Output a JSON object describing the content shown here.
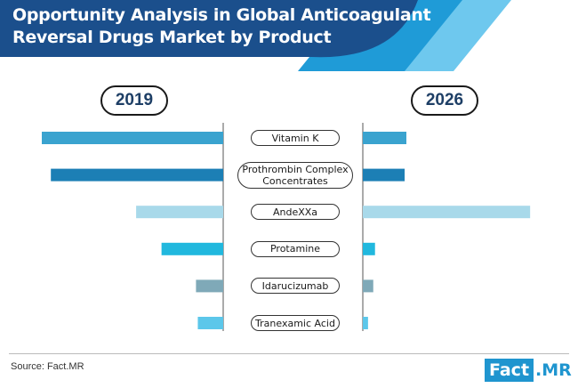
{
  "header": {
    "title_line_1": "Opportunity Analysis in Global Anticoagulant",
    "title_line_2": "Reversal Drugs Market by Product",
    "colors": {
      "dark": "#1b4f8c",
      "mid": "#1f9bd7",
      "light": "#6ec8ee"
    }
  },
  "footer": {
    "source": "Source: Fact.MR",
    "logo_left": "Fact",
    "logo_right": ".MR",
    "logo_color": "#1f95cf"
  },
  "chart_data": {
    "type": "bar",
    "layout": "butterfly",
    "series": [
      {
        "name": "2019",
        "side": "left"
      },
      {
        "name": "2026",
        "side": "right"
      }
    ],
    "categories": [
      {
        "label": "Vitamin K",
        "color": "#3aa3cf",
        "v2019": 100,
        "v2026": 25
      },
      {
        "label": "Prothrombin Complex Concentrates",
        "color": "#1c7fb5",
        "v2019": 95,
        "v2026": 24
      },
      {
        "label": "AndeXXa",
        "color": "#a8d9ea",
        "v2019": 48,
        "v2026": 96
      },
      {
        "label": "Protamine",
        "color": "#21b8de",
        "v2019": 34,
        "v2026": 7
      },
      {
        "label": "Idarucizumab",
        "color": "#7fa9b8",
        "v2019": 15,
        "v2026": 6
      },
      {
        "label": "Tranexamic Acid",
        "color": "#5cc7ea",
        "v2019": 14,
        "v2026": 3
      }
    ],
    "xlim": [
      0,
      100
    ],
    "axis_color": "#555555"
  }
}
